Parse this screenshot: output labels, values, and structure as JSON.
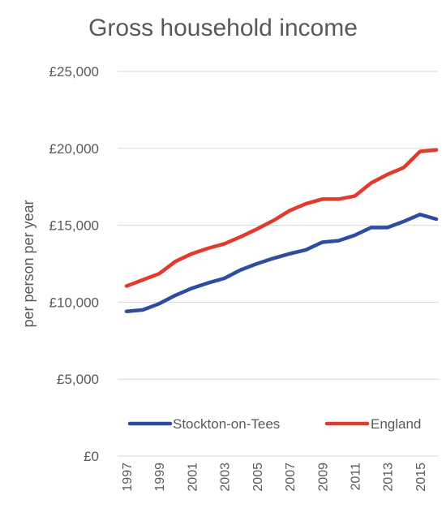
{
  "chart_data": {
    "type": "line",
    "title": "Gross household income",
    "ylabel": "per person per year",
    "xlabel": "",
    "ylim": [
      0,
      25000
    ],
    "yticks": [
      0,
      5000,
      10000,
      15000,
      20000,
      25000
    ],
    "ytick_labels": [
      "£0",
      "£5,000",
      "£10,000",
      "£15,000",
      "£20,000",
      "£25,000"
    ],
    "x": [
      1997,
      1998,
      1999,
      2000,
      2001,
      2002,
      2003,
      2004,
      2005,
      2006,
      2007,
      2008,
      2009,
      2010,
      2011,
      2012,
      2013,
      2014,
      2015,
      2016
    ],
    "xtick_labels": [
      "1997",
      "1999",
      "2001",
      "2003",
      "2005",
      "2007",
      "2009",
      "2011",
      "2013",
      "2015"
    ],
    "grid": true,
    "legend_position": "inside-lower-center",
    "series": [
      {
        "name": "Stockton-on-Tees",
        "color": "#2E4DA0",
        "values": [
          9400,
          9500,
          9900,
          10450,
          10900,
          11250,
          11550,
          12100,
          12500,
          12850,
          13150,
          13400,
          13900,
          14000,
          14350,
          14850,
          14850,
          15250,
          15700,
          15400
        ]
      },
      {
        "name": "England",
        "color": "#E03B2E",
        "values": [
          11050,
          11450,
          11850,
          12650,
          13150,
          13500,
          13800,
          14250,
          14750,
          15300,
          15950,
          16400,
          16700,
          16700,
          16900,
          17750,
          18300,
          18750,
          19800,
          19900
        ]
      }
    ]
  }
}
